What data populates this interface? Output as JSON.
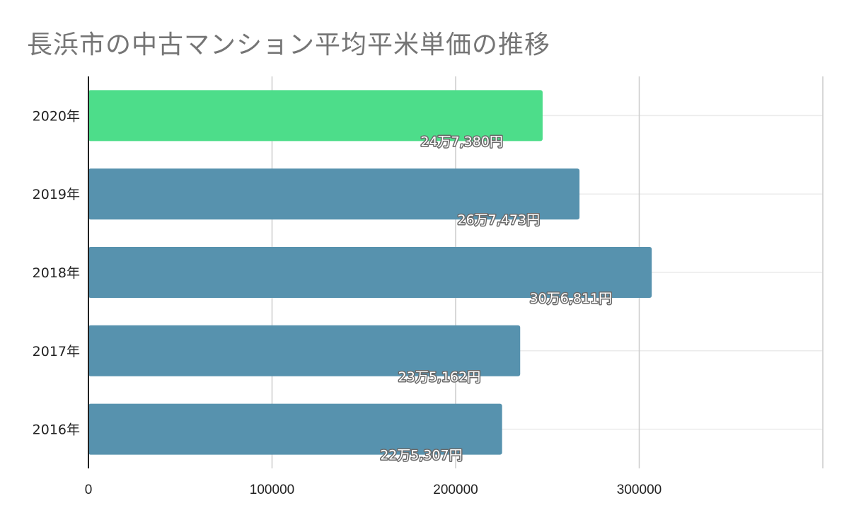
{
  "chart_data": {
    "type": "bar",
    "orientation": "horizontal",
    "title": "長浜市の中古マンション平均平米単価の推移",
    "xlabel": "",
    "ylabel": "",
    "categories": [
      "2020年",
      "2019年",
      "2018年",
      "2017年",
      "2016年"
    ],
    "values": [
      247380,
      267473,
      306811,
      235162,
      225307
    ],
    "data_labels": [
      "24万7,380円",
      "26万7,473円",
      "30万6,811円",
      "23万5,162円",
      "22万5,307円"
    ],
    "xlim": [
      0,
      400000
    ],
    "x_ticks": [
      0,
      100000,
      200000,
      300000
    ],
    "x_tick_labels": [
      "0",
      "100000",
      "200000",
      "300000"
    ],
    "grid": true,
    "colors": {
      "highlight": "#4ddd8a",
      "default": "#5792ae",
      "grid": "#cccccc",
      "axis": "#222222",
      "title": "#757575"
    },
    "highlight_index": 0
  }
}
